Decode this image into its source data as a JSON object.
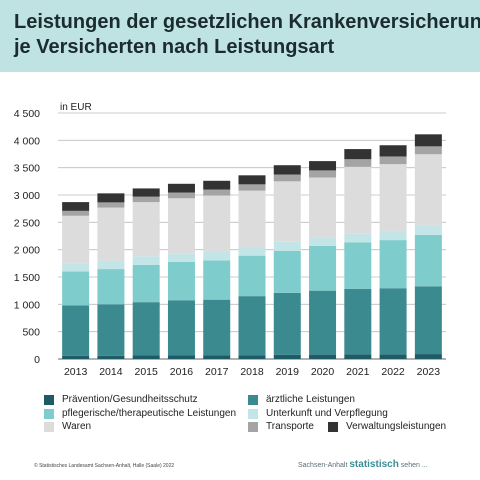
{
  "header": {
    "title_line1": "Leistungen der gesetzlichen Krankenversicherung",
    "title_line2": "je Versicherten nach Leistungsart"
  },
  "chart_data": {
    "type": "bar",
    "stacked": true,
    "unit_label": "in EUR",
    "categories": [
      "2013",
      "2014",
      "2015",
      "2016",
      "2017",
      "2018",
      "2019",
      "2020",
      "2021",
      "2022",
      "2023"
    ],
    "ylim": [
      0,
      4500
    ],
    "yticks": [
      0,
      500,
      1000,
      1500,
      2000,
      2500,
      3000,
      3500,
      4000,
      4500
    ],
    "ytick_labels": [
      "0",
      "500",
      "1 000",
      "1 500",
      "2 000",
      "2 500",
      "3 000",
      "3 500",
      "4 000",
      "4 500"
    ],
    "grid": true,
    "series": [
      {
        "name": "Prävention/Gesundheitsschutz",
        "color": "#1e5b66",
        "values": [
          60,
          60,
          65,
          65,
          70,
          70,
          75,
          80,
          85,
          85,
          90
        ]
      },
      {
        "name": "ärztliche Leistungen",
        "color": "#3a8a90",
        "values": [
          920,
          940,
          975,
          1010,
          1015,
          1080,
          1135,
          1170,
          1200,
          1210,
          1240
        ]
      },
      {
        "name": "pflegerische/therapeutische Leistungen",
        "color": "#7fcccc",
        "values": [
          620,
          645,
          680,
          700,
          720,
          740,
          770,
          820,
          850,
          880,
          940
        ]
      },
      {
        "name": "Unterkunft und Verpflegung",
        "color": "#c3e5e7",
        "values": [
          150,
          155,
          160,
          160,
          160,
          160,
          165,
          145,
          165,
          165,
          175
        ]
      },
      {
        "name": "Waren",
        "color": "#dcdcdc",
        "values": [
          870,
          970,
          990,
          1005,
          1025,
          1030,
          1105,
          1105,
          1215,
          1225,
          1300
        ]
      },
      {
        "name": "Transporte",
        "color": "#a4a4a4",
        "values": [
          90,
          95,
          100,
          105,
          110,
          115,
          125,
          130,
          140,
          140,
          145
        ]
      },
      {
        "name": "Verwaltungsleistungen",
        "color": "#333333",
        "values": [
          160,
          165,
          150,
          160,
          160,
          165,
          170,
          170,
          185,
          205,
          220
        ]
      }
    ]
  },
  "legend": {
    "items": [
      {
        "label": "Prävention/Gesundheitsschutz",
        "color": "#1e5b66"
      },
      {
        "label": "ärztliche Leistungen",
        "color": "#3a8a90"
      },
      {
        "label": "pflegerische/therapeutische Leistungen",
        "color": "#7fcccc"
      },
      {
        "label": "Unterkunft und Verpflegung",
        "color": "#c3e5e7"
      },
      {
        "label": "Waren",
        "color": "#dcdcdc"
      },
      {
        "label": "Transporte",
        "color": "#a4a4a4"
      },
      {
        "label": "Verwaltungsleistungen",
        "color": "#333333"
      }
    ]
  },
  "footer": {
    "source": "© Statistisches Landesamt Sachsen-Anhalt, Halle (Saale) 2022",
    "brand_prefix": "Sachsen-Anhalt",
    "brand_name": "statistisch",
    "brand_suffix": "sehen ..."
  }
}
